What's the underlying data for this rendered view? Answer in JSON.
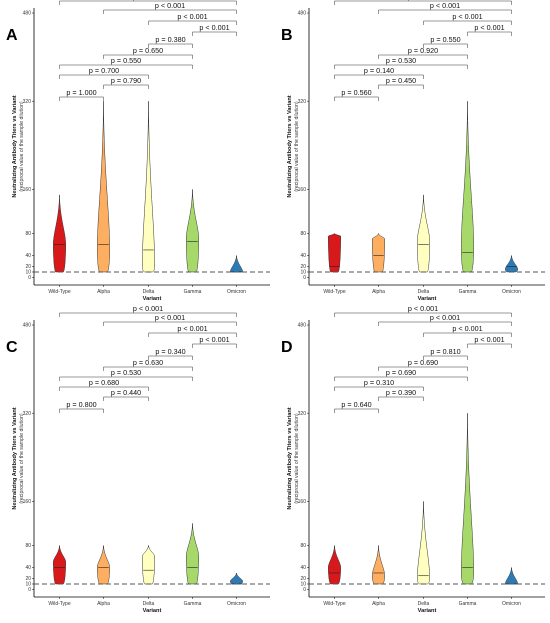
{
  "chart_data": [
    {
      "type": "violin",
      "panel_label": "A",
      "xlabel": "Variant",
      "ylabel": "Neutralizing Antibody Titers vs Variant",
      "ylabel_sub": "(reciprocal value of the sample dilution)",
      "yticks": [
        "0",
        "10",
        "20",
        "40",
        "80",
        "160",
        "320",
        "480"
      ],
      "ylim": [
        0,
        480
      ],
      "reference_line": 10,
      "categories": [
        "Wild-Type",
        "Alpha",
        "Delta",
        "Gamma",
        "Omicron"
      ],
      "colors": [
        "#d7191c",
        "#fdae61",
        "#ffffbf",
        "#a6d96a",
        "#2c7bb6"
      ],
      "series": [
        {
          "min": 10,
          "max": 150,
          "median": 60,
          "widest": 60
        },
        {
          "min": 10,
          "max": 320,
          "median": 60,
          "widest": 50
        },
        {
          "min": 10,
          "max": 320,
          "median": 50,
          "widest": 20
        },
        {
          "min": 10,
          "max": 160,
          "median": 65,
          "widest": 70
        },
        {
          "min": 10,
          "max": 40,
          "median": 10,
          "widest": 10
        }
      ],
      "comparisons": [
        {
          "from": 0,
          "to": 1,
          "label": "p =  1.000",
          "level": 0
        },
        {
          "from": 1,
          "to": 2,
          "label": "p =  0.790",
          "level": 1
        },
        {
          "from": 0,
          "to": 2,
          "label": "p =  0.700",
          "level": 2
        },
        {
          "from": 0,
          "to": 3,
          "label": "p =  0.550",
          "level": 3
        },
        {
          "from": 1,
          "to": 3,
          "label": "p =  0.650",
          "level": 4
        },
        {
          "from": 2,
          "to": 3,
          "label": "p =  0.380",
          "level": 5
        },
        {
          "from": 3,
          "to": 4,
          "label": "p <  0.001",
          "level": 6
        },
        {
          "from": 2,
          "to": 4,
          "label": "p <  0.001",
          "level": 7
        },
        {
          "from": 1,
          "to": 4,
          "label": "p <  0.001",
          "level": 8
        },
        {
          "from": 0,
          "to": 4,
          "label": "p <  0.001",
          "level": 9
        }
      ]
    },
    {
      "type": "violin",
      "panel_label": "B",
      "xlabel": "Variant",
      "ylabel": "Neutralizing Antibody Titers vs Variant",
      "ylabel_sub": "(reciprocal value of the sample dilution)",
      "yticks": [
        "0",
        "10",
        "20",
        "40",
        "80",
        "160",
        "320",
        "480"
      ],
      "ylim": [
        0,
        480
      ],
      "reference_line": 10,
      "categories": [
        "Wild-Type",
        "Alpha",
        "Delta",
        "Gamma",
        "Omicron"
      ],
      "colors": [
        "#d7191c",
        "#fdae61",
        "#ffffbf",
        "#a6d96a",
        "#2c7bb6"
      ],
      "series": [
        {
          "min": 10,
          "max": 80,
          "median": 20,
          "widest": 75
        },
        {
          "min": 10,
          "max": 80,
          "median": 40,
          "widest": 70
        },
        {
          "min": 10,
          "max": 150,
          "median": 60,
          "widest": 65
        },
        {
          "min": 10,
          "max": 320,
          "median": 45,
          "widest": 55
        },
        {
          "min": 10,
          "max": 40,
          "median": 20,
          "widest": 15
        }
      ],
      "comparisons": [
        {
          "from": 0,
          "to": 1,
          "label": "p =  0.560",
          "level": 0
        },
        {
          "from": 1,
          "to": 2,
          "label": "p =  0.450",
          "level": 1
        },
        {
          "from": 0,
          "to": 2,
          "label": "p =  0.140",
          "level": 2
        },
        {
          "from": 0,
          "to": 3,
          "label": "p =  0.530",
          "level": 3
        },
        {
          "from": 1,
          "to": 3,
          "label": "p =  0.920",
          "level": 4
        },
        {
          "from": 2,
          "to": 3,
          "label": "p =  0.550",
          "level": 5
        },
        {
          "from": 3,
          "to": 4,
          "label": "p <  0.001",
          "level": 6
        },
        {
          "from": 2,
          "to": 4,
          "label": "p <  0.001",
          "level": 7
        },
        {
          "from": 1,
          "to": 4,
          "label": "p <  0.001",
          "level": 8
        },
        {
          "from": 0,
          "to": 4,
          "label": "p <  0.001",
          "level": 9
        }
      ]
    },
    {
      "type": "violin",
      "panel_label": "C",
      "xlabel": "Variant",
      "ylabel": "Neutralizing Antibody Titers vs Variant",
      "ylabel_sub": "(reciprocal value of the sample dilution)",
      "yticks": [
        "0",
        "10",
        "20",
        "40",
        "80",
        "160",
        "320",
        "480"
      ],
      "ylim": [
        0,
        480
      ],
      "reference_line": 10,
      "categories": [
        "Wild-Type",
        "Alpha",
        "Delta",
        "Gamma",
        "Omicron"
      ],
      "colors": [
        "#d7191c",
        "#fdae61",
        "#ffffbf",
        "#a6d96a",
        "#2c7bb6"
      ],
      "series": [
        {
          "min": 10,
          "max": 80,
          "median": 40,
          "widest": 50
        },
        {
          "min": 10,
          "max": 80,
          "median": 40,
          "widest": 40
        },
        {
          "min": 10,
          "max": 80,
          "median": 35,
          "widest": 60
        },
        {
          "min": 10,
          "max": 120,
          "median": 40,
          "widest": 60
        },
        {
          "min": 10,
          "max": 30,
          "median": 10,
          "widest": 15
        }
      ],
      "comparisons": [
        {
          "from": 0,
          "to": 1,
          "label": "p =  0.800",
          "level": 0
        },
        {
          "from": 1,
          "to": 2,
          "label": "p =  0.440",
          "level": 1
        },
        {
          "from": 0,
          "to": 2,
          "label": "p =  0.680",
          "level": 2
        },
        {
          "from": 0,
          "to": 3,
          "label": "p =  0.530",
          "level": 3
        },
        {
          "from": 1,
          "to": 3,
          "label": "p =  0.630",
          "level": 4
        },
        {
          "from": 2,
          "to": 3,
          "label": "p =  0.340",
          "level": 5
        },
        {
          "from": 3,
          "to": 4,
          "label": "p <  0.001",
          "level": 6
        },
        {
          "from": 2,
          "to": 4,
          "label": "p <  0.001",
          "level": 7
        },
        {
          "from": 1,
          "to": 4,
          "label": "p <  0.001",
          "level": 8
        },
        {
          "from": 0,
          "to": 4,
          "label": "p <  0.001",
          "level": 9
        }
      ]
    },
    {
      "type": "violin",
      "panel_label": "D",
      "xlabel": "Variant",
      "ylabel": "Neutralizing Antibody Titers vs Variant",
      "ylabel_sub": "(reciprocal value of the sample dilution)",
      "yticks": [
        "0",
        "10",
        "20",
        "40",
        "80",
        "160",
        "320",
        "480"
      ],
      "ylim": [
        0,
        480
      ],
      "reference_line": 10,
      "categories": [
        "Wild-Type",
        "Alpha",
        "Delta",
        "Gamma",
        "Omicron"
      ],
      "colors": [
        "#d7191c",
        "#fdae61",
        "#ffffbf",
        "#a6d96a",
        "#2c7bb6"
      ],
      "series": [
        {
          "min": 10,
          "max": 80,
          "median": 30,
          "widest": 40
        },
        {
          "min": 10,
          "max": 80,
          "median": 30,
          "widest": 25
        },
        {
          "min": 10,
          "max": 160,
          "median": 25,
          "widest": 20
        },
        {
          "min": 10,
          "max": 320,
          "median": 40,
          "widest": 30
        },
        {
          "min": 10,
          "max": 40,
          "median": 10,
          "widest": 10
        }
      ],
      "comparisons": [
        {
          "from": 0,
          "to": 1,
          "label": "p =  0.640",
          "level": 0
        },
        {
          "from": 1,
          "to": 2,
          "label": "p =  0.390",
          "level": 1
        },
        {
          "from": 0,
          "to": 2,
          "label": "p =  0.310",
          "level": 2
        },
        {
          "from": 0,
          "to": 3,
          "label": "p =  0.690",
          "level": 3
        },
        {
          "from": 1,
          "to": 3,
          "label": "p =  0.690",
          "level": 4
        },
        {
          "from": 2,
          "to": 3,
          "label": "p =  0.810",
          "level": 5
        },
        {
          "from": 3,
          "to": 4,
          "label": "p <  0.001",
          "level": 6
        },
        {
          "from": 2,
          "to": 4,
          "label": "p <  0.001",
          "level": 7
        },
        {
          "from": 1,
          "to": 4,
          "label": "p <  0.001",
          "level": 8
        },
        {
          "from": 0,
          "to": 4,
          "label": "p <  0.001",
          "level": 9
        }
      ]
    }
  ]
}
